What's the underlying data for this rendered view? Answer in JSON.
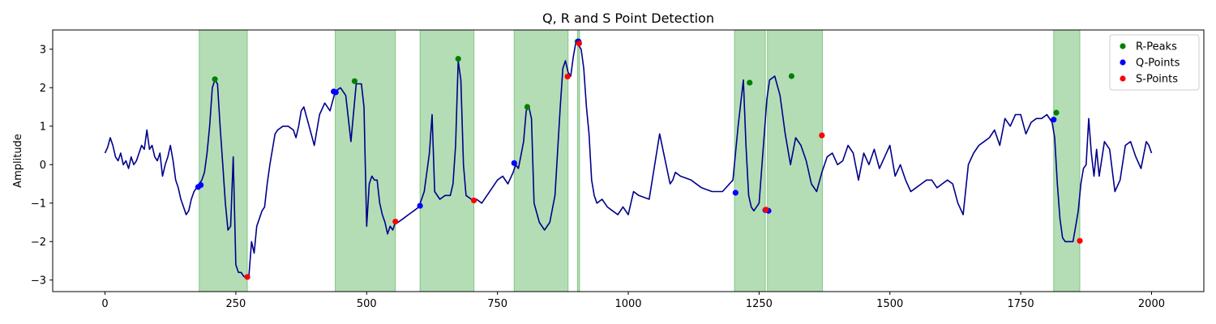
{
  "chart_data": {
    "type": "line",
    "title": "Q, R and S Point Detection",
    "xlabel": "",
    "ylabel": "Amplitude",
    "xlim": [
      -100,
      2100
    ],
    "ylim": [
      -3.3,
      3.5
    ],
    "xticks": [
      0,
      250,
      500,
      750,
      1000,
      1250,
      1500,
      1750,
      2000
    ],
    "yticks": [
      -3,
      -2,
      -1,
      0,
      1,
      2,
      3
    ],
    "grid": false,
    "legend_position": "top-right",
    "colors": {
      "signal": "#00008b",
      "r_peaks": "#008000",
      "q_points": "#0000ff",
      "s_points": "#ff0000",
      "region": "#4caf50"
    },
    "regions": [
      [
        180,
        272
      ],
      [
        440,
        555
      ],
      [
        602,
        705
      ],
      [
        782,
        885
      ],
      [
        903,
        907
      ],
      [
        1203,
        1262
      ],
      [
        1266,
        1371
      ],
      [
        1813,
        1863
      ]
    ],
    "signal": {
      "x": [
        0,
        5,
        10,
        15,
        20,
        25,
        30,
        35,
        40,
        45,
        50,
        55,
        60,
        65,
        70,
        75,
        80,
        85,
        90,
        95,
        100,
        105,
        110,
        115,
        120,
        125,
        130,
        135,
        140,
        145,
        150,
        155,
        160,
        165,
        170,
        175,
        180,
        185,
        190,
        195,
        200,
        205,
        210,
        215,
        220,
        225,
        230,
        235,
        240,
        245,
        250,
        255,
        260,
        265,
        270,
        275,
        280,
        285,
        290,
        295,
        300,
        305,
        310,
        315,
        320,
        325,
        330,
        340,
        350,
        360,
        365,
        370,
        375,
        380,
        390,
        400,
        410,
        420,
        430,
        440,
        450,
        460,
        465,
        470,
        480,
        490,
        495,
        500,
        505,
        510,
        515,
        520,
        525,
        530,
        535,
        540,
        545,
        550,
        555,
        560,
        570,
        580,
        590,
        600,
        610,
        615,
        620,
        625,
        630,
        640,
        650,
        660,
        665,
        670,
        675,
        680,
        685,
        690,
        700,
        710,
        720,
        730,
        740,
        750,
        760,
        770,
        780,
        785,
        790,
        800,
        805,
        810,
        815,
        820,
        830,
        840,
        850,
        860,
        870,
        875,
        880,
        885,
        890,
        895,
        900,
        905,
        910,
        915,
        920,
        925,
        930,
        935,
        940,
        950,
        960,
        970,
        980,
        990,
        1000,
        1010,
        1020,
        1040,
        1060,
        1080,
        1085,
        1090,
        1100,
        1120,
        1140,
        1160,
        1180,
        1200,
        1210,
        1220,
        1225,
        1230,
        1235,
        1240,
        1250,
        1260,
        1265,
        1270,
        1280,
        1290,
        1300,
        1310,
        1320,
        1330,
        1340,
        1350,
        1360,
        1370,
        1380,
        1390,
        1400,
        1410,
        1420,
        1430,
        1440,
        1450,
        1460,
        1470,
        1480,
        1490,
        1500,
        1510,
        1520,
        1530,
        1540,
        1550,
        1560,
        1570,
        1580,
        1590,
        1600,
        1610,
        1620,
        1630,
        1640,
        1650,
        1660,
        1670,
        1680,
        1690,
        1700,
        1710,
        1720,
        1730,
        1740,
        1750,
        1760,
        1770,
        1780,
        1790,
        1800,
        1810,
        1815,
        1820,
        1825,
        1830,
        1835,
        1840,
        1845,
        1850,
        1855,
        1860,
        1865,
        1870,
        1875,
        1880,
        1885,
        1890,
        1895,
        1900,
        1910,
        1920,
        1930,
        1940,
        1950,
        1960,
        1970,
        1980,
        1990,
        1995,
        2000
      ],
      "y": [
        0.3,
        0.45,
        0.7,
        0.5,
        0.2,
        0.1,
        0.3,
        0.0,
        0.1,
        -0.1,
        0.2,
        0.0,
        0.1,
        0.3,
        0.5,
        0.4,
        0.9,
        0.4,
        0.5,
        0.2,
        0.1,
        0.3,
        -0.3,
        0.0,
        0.2,
        0.5,
        0.1,
        -0.4,
        -0.6,
        -0.9,
        -1.1,
        -1.3,
        -1.2,
        -0.9,
        -0.7,
        -0.6,
        -0.5,
        -0.4,
        -0.2,
        0.3,
        1.0,
        2.0,
        2.2,
        2.1,
        1.0,
        0.0,
        -1.0,
        -1.7,
        -1.6,
        0.2,
        -2.6,
        -2.8,
        -2.8,
        -2.9,
        -2.95,
        -2.9,
        -2.0,
        -2.3,
        -1.6,
        -1.4,
        -1.2,
        -1.1,
        -0.5,
        0.0,
        0.4,
        0.8,
        0.9,
        1.0,
        1.0,
        0.9,
        0.7,
        1.0,
        1.4,
        1.5,
        1.0,
        0.5,
        1.3,
        1.6,
        1.4,
        1.9,
        2.0,
        1.8,
        1.2,
        0.6,
        2.1,
        2.1,
        1.5,
        -1.6,
        -0.5,
        -0.3,
        -0.4,
        -0.4,
        -1.0,
        -1.3,
        -1.5,
        -1.8,
        -1.6,
        -1.7,
        -1.5,
        -1.5,
        -1.4,
        -1.3,
        -1.2,
        -1.1,
        -0.7,
        -0.2,
        0.3,
        1.3,
        -0.7,
        -0.9,
        -0.8,
        -0.8,
        -0.5,
        0.5,
        2.7,
        2.2,
        0.0,
        -0.8,
        -0.9,
        -0.9,
        -1.0,
        -0.8,
        -0.6,
        -0.4,
        -0.3,
        -0.5,
        -0.2,
        0.0,
        -0.1,
        0.6,
        1.4,
        1.5,
        1.2,
        -1.0,
        -1.5,
        -1.7,
        -1.5,
        -0.8,
        1.5,
        2.5,
        2.7,
        2.4,
        2.3,
        2.8,
        3.2,
        3.1,
        3.0,
        2.5,
        1.5,
        0.8,
        -0.4,
        -0.8,
        -1.0,
        -0.9,
        -1.1,
        -1.2,
        -1.3,
        -1.1,
        -1.3,
        -0.7,
        -0.8,
        -0.9,
        0.8,
        -0.5,
        -0.4,
        -0.2,
        -0.3,
        -0.4,
        -0.6,
        -0.7,
        -0.7,
        -0.4,
        1.0,
        2.2,
        0.5,
        -0.8,
        -1.1,
        -1.2,
        -1.0,
        0.8,
        1.7,
        2.2,
        2.3,
        1.8,
        0.8,
        0.0,
        0.7,
        0.5,
        0.1,
        -0.5,
        -0.7,
        -0.2,
        0.2,
        0.3,
        0.0,
        0.1,
        0.5,
        0.3,
        -0.4,
        0.3,
        0.0,
        0.4,
        -0.1,
        0.2,
        0.5,
        -0.3,
        0.0,
        -0.4,
        -0.7,
        -0.6,
        -0.5,
        -0.4,
        -0.4,
        -0.6,
        -0.5,
        -0.4,
        -0.5,
        -1.0,
        -1.3,
        0.0,
        0.3,
        0.5,
        0.6,
        0.7,
        0.9,
        0.5,
        1.2,
        1.0,
        1.3,
        1.3,
        0.8,
        1.1,
        1.2,
        1.2,
        1.3,
        1.1,
        0.7,
        -0.5,
        -1.4,
        -1.9,
        -2.0,
        -2.0,
        -2.0,
        -2.0,
        -1.6,
        -1.2,
        -0.5,
        -0.1,
        0.0,
        1.2,
        0.3,
        -0.3,
        0.4,
        -0.3,
        0.6,
        0.4,
        -0.7,
        -0.4,
        0.5,
        0.6,
        0.2,
        -0.1,
        0.6,
        0.5,
        0.3
      ]
    },
    "series": [
      {
        "name": "R-Peaks",
        "x": [
          210,
          477,
          675,
          807,
          903,
          1232,
          1312,
          1818
        ],
        "y": [
          2.22,
          2.17,
          2.75,
          1.5,
          3.2,
          2.13,
          2.3,
          1.35
        ]
      },
      {
        "name": "Q-Points",
        "x": [
          178,
          183,
          437,
          441,
          602,
          782,
          905,
          1205,
          1262,
          1268,
          1813
        ],
        "y": [
          -0.58,
          -0.53,
          1.9,
          1.88,
          -1.07,
          0.04,
          3.2,
          -0.73,
          -1.18,
          -1.2,
          1.17
        ]
      },
      {
        "name": "S-Points",
        "x": [
          272,
          555,
          705,
          884,
          906,
          1263,
          1370,
          1863
        ],
        "y": [
          -2.92,
          -1.48,
          -0.93,
          2.29,
          3.15,
          -1.17,
          0.76,
          -1.98
        ]
      }
    ]
  }
}
